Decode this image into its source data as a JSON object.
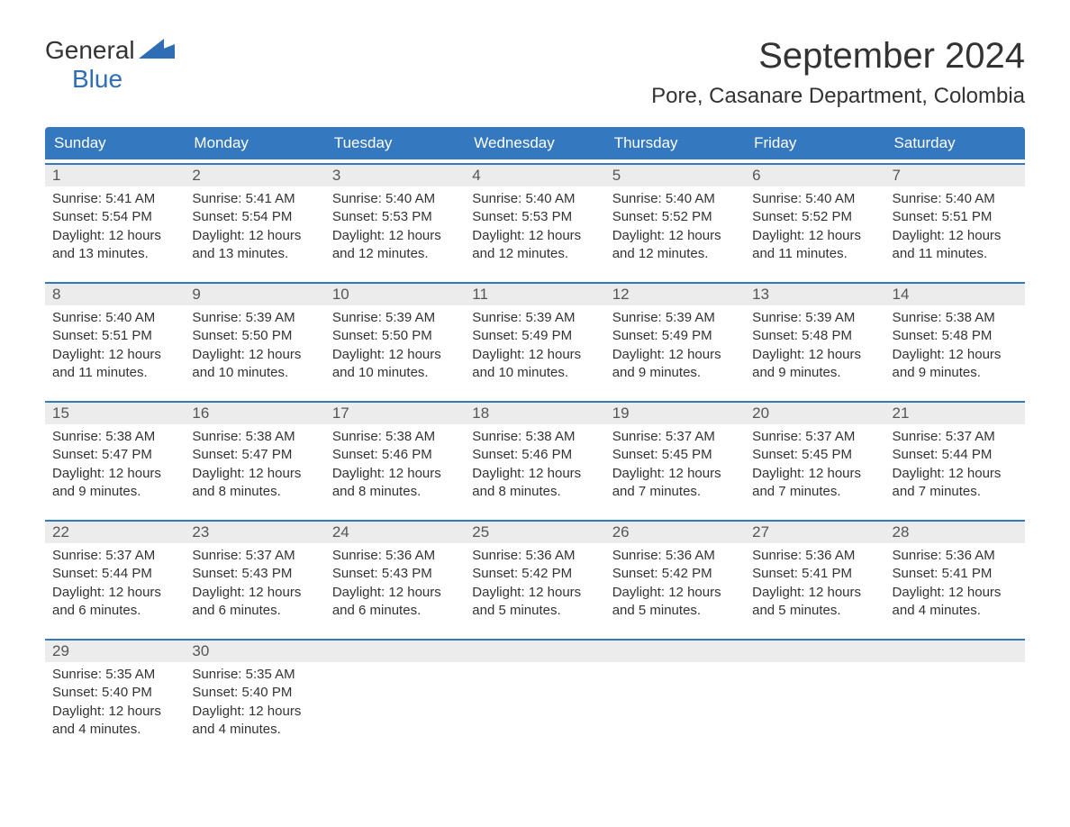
{
  "logo": {
    "text_general": "General",
    "text_blue": "Blue",
    "icon_color": "#2f6eb5"
  },
  "title": "September 2024",
  "location": "Pore, Casanare Department, Colombia",
  "colors": {
    "header_bg": "#3478c0",
    "header_text": "#ffffff",
    "day_bar_bg": "#ececec",
    "day_bar_border": "#3478c0",
    "body_text": "#333333",
    "logo_gray": "#333333",
    "logo_blue": "#2f6eb5",
    "background": "#ffffff"
  },
  "weekdays": [
    "Sunday",
    "Monday",
    "Tuesday",
    "Wednesday",
    "Thursday",
    "Friday",
    "Saturday"
  ],
  "weeks": [
    [
      {
        "day": "1",
        "sunrise": "Sunrise: 5:41 AM",
        "sunset": "Sunset: 5:54 PM",
        "daylight1": "Daylight: 12 hours",
        "daylight2": "and 13 minutes."
      },
      {
        "day": "2",
        "sunrise": "Sunrise: 5:41 AM",
        "sunset": "Sunset: 5:54 PM",
        "daylight1": "Daylight: 12 hours",
        "daylight2": "and 13 minutes."
      },
      {
        "day": "3",
        "sunrise": "Sunrise: 5:40 AM",
        "sunset": "Sunset: 5:53 PM",
        "daylight1": "Daylight: 12 hours",
        "daylight2": "and 12 minutes."
      },
      {
        "day": "4",
        "sunrise": "Sunrise: 5:40 AM",
        "sunset": "Sunset: 5:53 PM",
        "daylight1": "Daylight: 12 hours",
        "daylight2": "and 12 minutes."
      },
      {
        "day": "5",
        "sunrise": "Sunrise: 5:40 AM",
        "sunset": "Sunset: 5:52 PM",
        "daylight1": "Daylight: 12 hours",
        "daylight2": "and 12 minutes."
      },
      {
        "day": "6",
        "sunrise": "Sunrise: 5:40 AM",
        "sunset": "Sunset: 5:52 PM",
        "daylight1": "Daylight: 12 hours",
        "daylight2": "and 11 minutes."
      },
      {
        "day": "7",
        "sunrise": "Sunrise: 5:40 AM",
        "sunset": "Sunset: 5:51 PM",
        "daylight1": "Daylight: 12 hours",
        "daylight2": "and 11 minutes."
      }
    ],
    [
      {
        "day": "8",
        "sunrise": "Sunrise: 5:40 AM",
        "sunset": "Sunset: 5:51 PM",
        "daylight1": "Daylight: 12 hours",
        "daylight2": "and 11 minutes."
      },
      {
        "day": "9",
        "sunrise": "Sunrise: 5:39 AM",
        "sunset": "Sunset: 5:50 PM",
        "daylight1": "Daylight: 12 hours",
        "daylight2": "and 10 minutes."
      },
      {
        "day": "10",
        "sunrise": "Sunrise: 5:39 AM",
        "sunset": "Sunset: 5:50 PM",
        "daylight1": "Daylight: 12 hours",
        "daylight2": "and 10 minutes."
      },
      {
        "day": "11",
        "sunrise": "Sunrise: 5:39 AM",
        "sunset": "Sunset: 5:49 PM",
        "daylight1": "Daylight: 12 hours",
        "daylight2": "and 10 minutes."
      },
      {
        "day": "12",
        "sunrise": "Sunrise: 5:39 AM",
        "sunset": "Sunset: 5:49 PM",
        "daylight1": "Daylight: 12 hours",
        "daylight2": "and 9 minutes."
      },
      {
        "day": "13",
        "sunrise": "Sunrise: 5:39 AM",
        "sunset": "Sunset: 5:48 PM",
        "daylight1": "Daylight: 12 hours",
        "daylight2": "and 9 minutes."
      },
      {
        "day": "14",
        "sunrise": "Sunrise: 5:38 AM",
        "sunset": "Sunset: 5:48 PM",
        "daylight1": "Daylight: 12 hours",
        "daylight2": "and 9 minutes."
      }
    ],
    [
      {
        "day": "15",
        "sunrise": "Sunrise: 5:38 AM",
        "sunset": "Sunset: 5:47 PM",
        "daylight1": "Daylight: 12 hours",
        "daylight2": "and 9 minutes."
      },
      {
        "day": "16",
        "sunrise": "Sunrise: 5:38 AM",
        "sunset": "Sunset: 5:47 PM",
        "daylight1": "Daylight: 12 hours",
        "daylight2": "and 8 minutes."
      },
      {
        "day": "17",
        "sunrise": "Sunrise: 5:38 AM",
        "sunset": "Sunset: 5:46 PM",
        "daylight1": "Daylight: 12 hours",
        "daylight2": "and 8 minutes."
      },
      {
        "day": "18",
        "sunrise": "Sunrise: 5:38 AM",
        "sunset": "Sunset: 5:46 PM",
        "daylight1": "Daylight: 12 hours",
        "daylight2": "and 8 minutes."
      },
      {
        "day": "19",
        "sunrise": "Sunrise: 5:37 AM",
        "sunset": "Sunset: 5:45 PM",
        "daylight1": "Daylight: 12 hours",
        "daylight2": "and 7 minutes."
      },
      {
        "day": "20",
        "sunrise": "Sunrise: 5:37 AM",
        "sunset": "Sunset: 5:45 PM",
        "daylight1": "Daylight: 12 hours",
        "daylight2": "and 7 minutes."
      },
      {
        "day": "21",
        "sunrise": "Sunrise: 5:37 AM",
        "sunset": "Sunset: 5:44 PM",
        "daylight1": "Daylight: 12 hours",
        "daylight2": "and 7 minutes."
      }
    ],
    [
      {
        "day": "22",
        "sunrise": "Sunrise: 5:37 AM",
        "sunset": "Sunset: 5:44 PM",
        "daylight1": "Daylight: 12 hours",
        "daylight2": "and 6 minutes."
      },
      {
        "day": "23",
        "sunrise": "Sunrise: 5:37 AM",
        "sunset": "Sunset: 5:43 PM",
        "daylight1": "Daylight: 12 hours",
        "daylight2": "and 6 minutes."
      },
      {
        "day": "24",
        "sunrise": "Sunrise: 5:36 AM",
        "sunset": "Sunset: 5:43 PM",
        "daylight1": "Daylight: 12 hours",
        "daylight2": "and 6 minutes."
      },
      {
        "day": "25",
        "sunrise": "Sunrise: 5:36 AM",
        "sunset": "Sunset: 5:42 PM",
        "daylight1": "Daylight: 12 hours",
        "daylight2": "and 5 minutes."
      },
      {
        "day": "26",
        "sunrise": "Sunrise: 5:36 AM",
        "sunset": "Sunset: 5:42 PM",
        "daylight1": "Daylight: 12 hours",
        "daylight2": "and 5 minutes."
      },
      {
        "day": "27",
        "sunrise": "Sunrise: 5:36 AM",
        "sunset": "Sunset: 5:41 PM",
        "daylight1": "Daylight: 12 hours",
        "daylight2": "and 5 minutes."
      },
      {
        "day": "28",
        "sunrise": "Sunrise: 5:36 AM",
        "sunset": "Sunset: 5:41 PM",
        "daylight1": "Daylight: 12 hours",
        "daylight2": "and 4 minutes."
      }
    ],
    [
      {
        "day": "29",
        "sunrise": "Sunrise: 5:35 AM",
        "sunset": "Sunset: 5:40 PM",
        "daylight1": "Daylight: 12 hours",
        "daylight2": "and 4 minutes."
      },
      {
        "day": "30",
        "sunrise": "Sunrise: 5:35 AM",
        "sunset": "Sunset: 5:40 PM",
        "daylight1": "Daylight: 12 hours",
        "daylight2": "and 4 minutes."
      },
      {
        "empty": true
      },
      {
        "empty": true
      },
      {
        "empty": true
      },
      {
        "empty": true
      },
      {
        "empty": true
      }
    ]
  ]
}
